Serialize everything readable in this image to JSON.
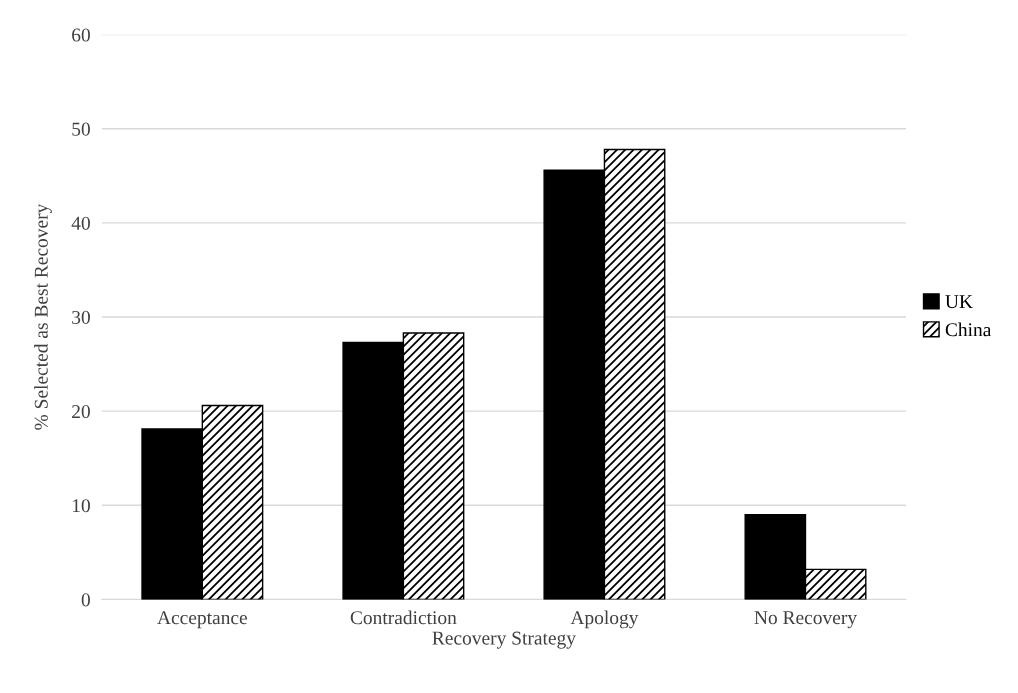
{
  "chart_data": {
    "type": "bar",
    "xlabel": "Recovery Strategy",
    "ylabel": "% Selected as Best Recovery",
    "categories": [
      "Acceptance",
      "Contradiction",
      "Apology",
      "No Recovery"
    ],
    "series": [
      {
        "name": "UK",
        "color": "#000000",
        "values": [
          18.1,
          27.3,
          45.6,
          9.0
        ]
      },
      {
        "name": "China",
        "color": "#000000",
        "values": [
          20.6,
          28.3,
          47.8,
          3.2
        ]
      }
    ],
    "ylim": [
      0,
      60
    ],
    "yticks": [
      0,
      10,
      20,
      30,
      40,
      50,
      60
    ],
    "grid": "y",
    "legend": "right"
  }
}
